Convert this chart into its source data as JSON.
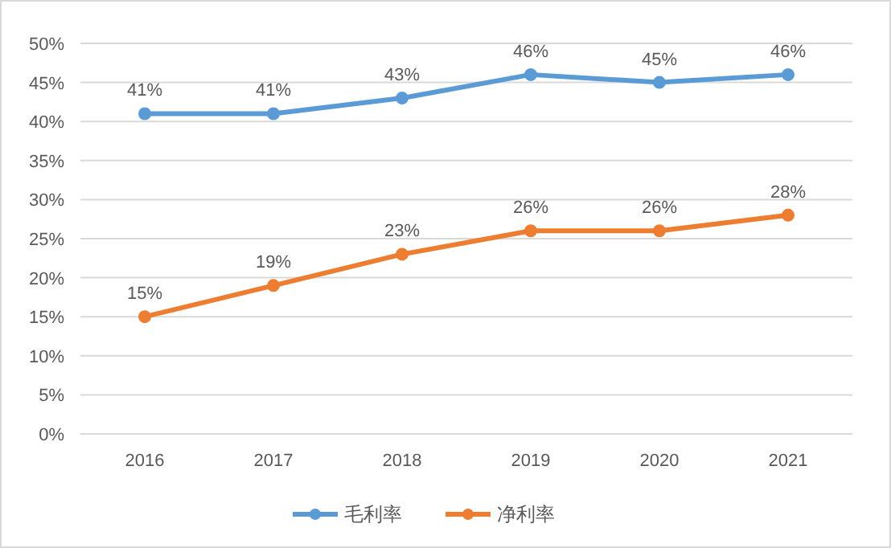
{
  "chart_data": {
    "type": "line",
    "categories": [
      "2016",
      "2017",
      "2018",
      "2019",
      "2020",
      "2021"
    ],
    "series": [
      {
        "name": "毛利率",
        "color": "#5b9bd5",
        "values": [
          41,
          41,
          43,
          46,
          45,
          46
        ],
        "value_labels": [
          "41%",
          "41%",
          "43%",
          "46%",
          "45%",
          "46%"
        ]
      },
      {
        "name": "净利率",
        "color": "#ed7d31",
        "values": [
          15,
          19,
          23,
          26,
          26,
          28
        ],
        "value_labels": [
          "15%",
          "19%",
          "23%",
          "26%",
          "26%",
          "28%"
        ]
      }
    ],
    "ylim": [
      0,
      50
    ],
    "yticks": [
      {
        "value": 0,
        "label": "0%"
      },
      {
        "value": 5,
        "label": "5%"
      },
      {
        "value": 10,
        "label": "10%"
      },
      {
        "value": 15,
        "label": "15%"
      },
      {
        "value": 20,
        "label": "20%"
      },
      {
        "value": 25,
        "label": "25%"
      },
      {
        "value": 30,
        "label": "30%"
      },
      {
        "value": 35,
        "label": "35%"
      },
      {
        "value": 40,
        "label": "40%"
      },
      {
        "value": 45,
        "label": "45%"
      },
      {
        "value": 50,
        "label": "50%"
      }
    ],
    "grid": "y",
    "legend": "bottom",
    "marker": "circle",
    "line_style": "solid"
  }
}
